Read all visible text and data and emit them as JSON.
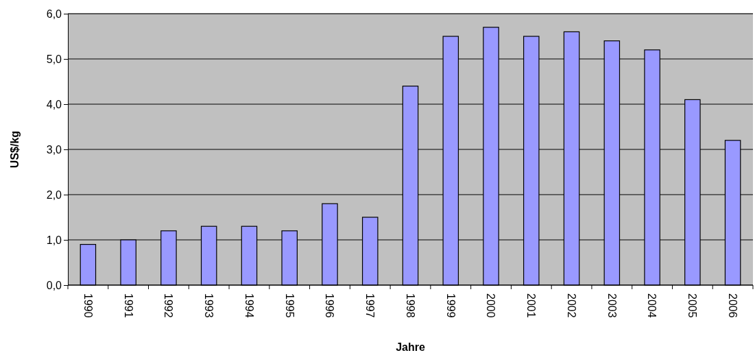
{
  "chart_data": {
    "type": "bar",
    "xlabel": "Jahre",
    "ylabel": "US$/kg",
    "categories": [
      "1990",
      "1991",
      "1992",
      "1993",
      "1994",
      "1995",
      "1996",
      "1997",
      "1998",
      "1999",
      "2000",
      "2001",
      "2002",
      "2003",
      "2004",
      "2005",
      "2006"
    ],
    "values": [
      0.9,
      1.0,
      1.2,
      1.3,
      1.3,
      1.2,
      1.8,
      1.5,
      4.4,
      5.5,
      5.7,
      5.5,
      5.6,
      5.4,
      5.2,
      4.1,
      3.2
    ],
    "color": "#9999ff",
    "ylim": [
      0,
      6
    ],
    "yticks": [
      {
        "value": 0,
        "label": "0,0"
      },
      {
        "value": 1,
        "label": "1,0"
      },
      {
        "value": 2,
        "label": "2,0"
      },
      {
        "value": 3,
        "label": "3,0"
      },
      {
        "value": 4,
        "label": "4,0"
      },
      {
        "value": 5,
        "label": "5,0"
      },
      {
        "value": 6,
        "label": "6,0"
      }
    ],
    "grid": "y"
  }
}
